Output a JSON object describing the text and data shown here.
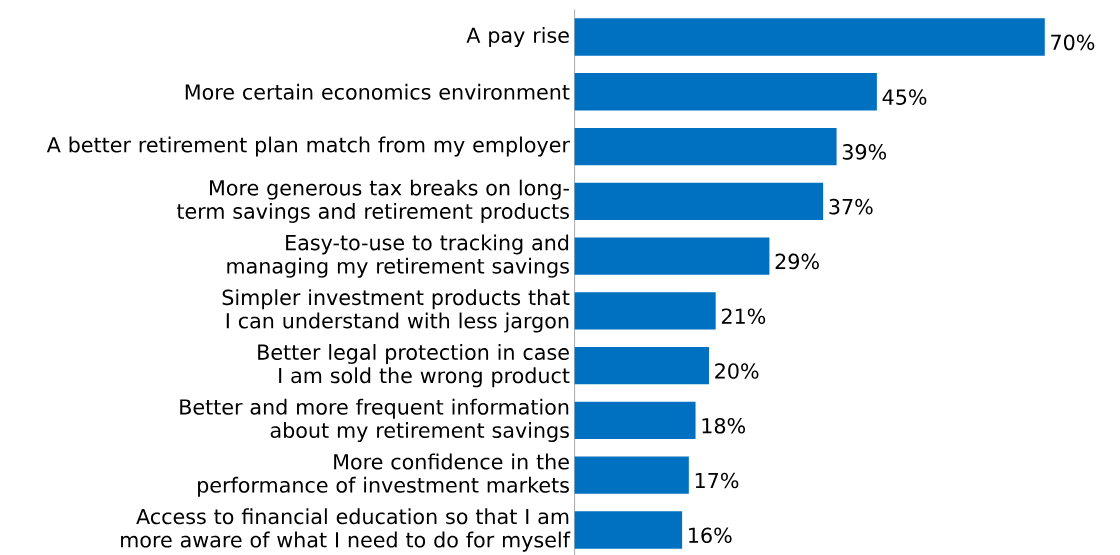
{
  "chart_data": {
    "type": "bar",
    "orientation": "horizontal",
    "categories": [
      "A pay rise",
      "More certain economics environment",
      "A better retirement plan match from my employer",
      "More generous tax breaks on long-term savings and retirement products",
      "Easy-to-use to tracking and managing my retirement savings",
      "Simpler investment products that I can understand with less jargon",
      "Better legal protection in case I am sold the wrong product",
      "Better and more frequent information about my retirement savings",
      "More confidence in the performance of investment markets",
      "Access to financial education so that I am more aware of what I need to do for myself"
    ],
    "values": [
      70,
      45,
      39,
      37,
      29,
      21,
      20,
      18,
      17,
      16
    ],
    "value_labels": [
      "70%",
      "45%",
      "39%",
      "37%",
      "29%",
      "21%",
      "20%",
      "18%",
      "17%",
      "16%"
    ],
    "color": "#0070c0"
  }
}
